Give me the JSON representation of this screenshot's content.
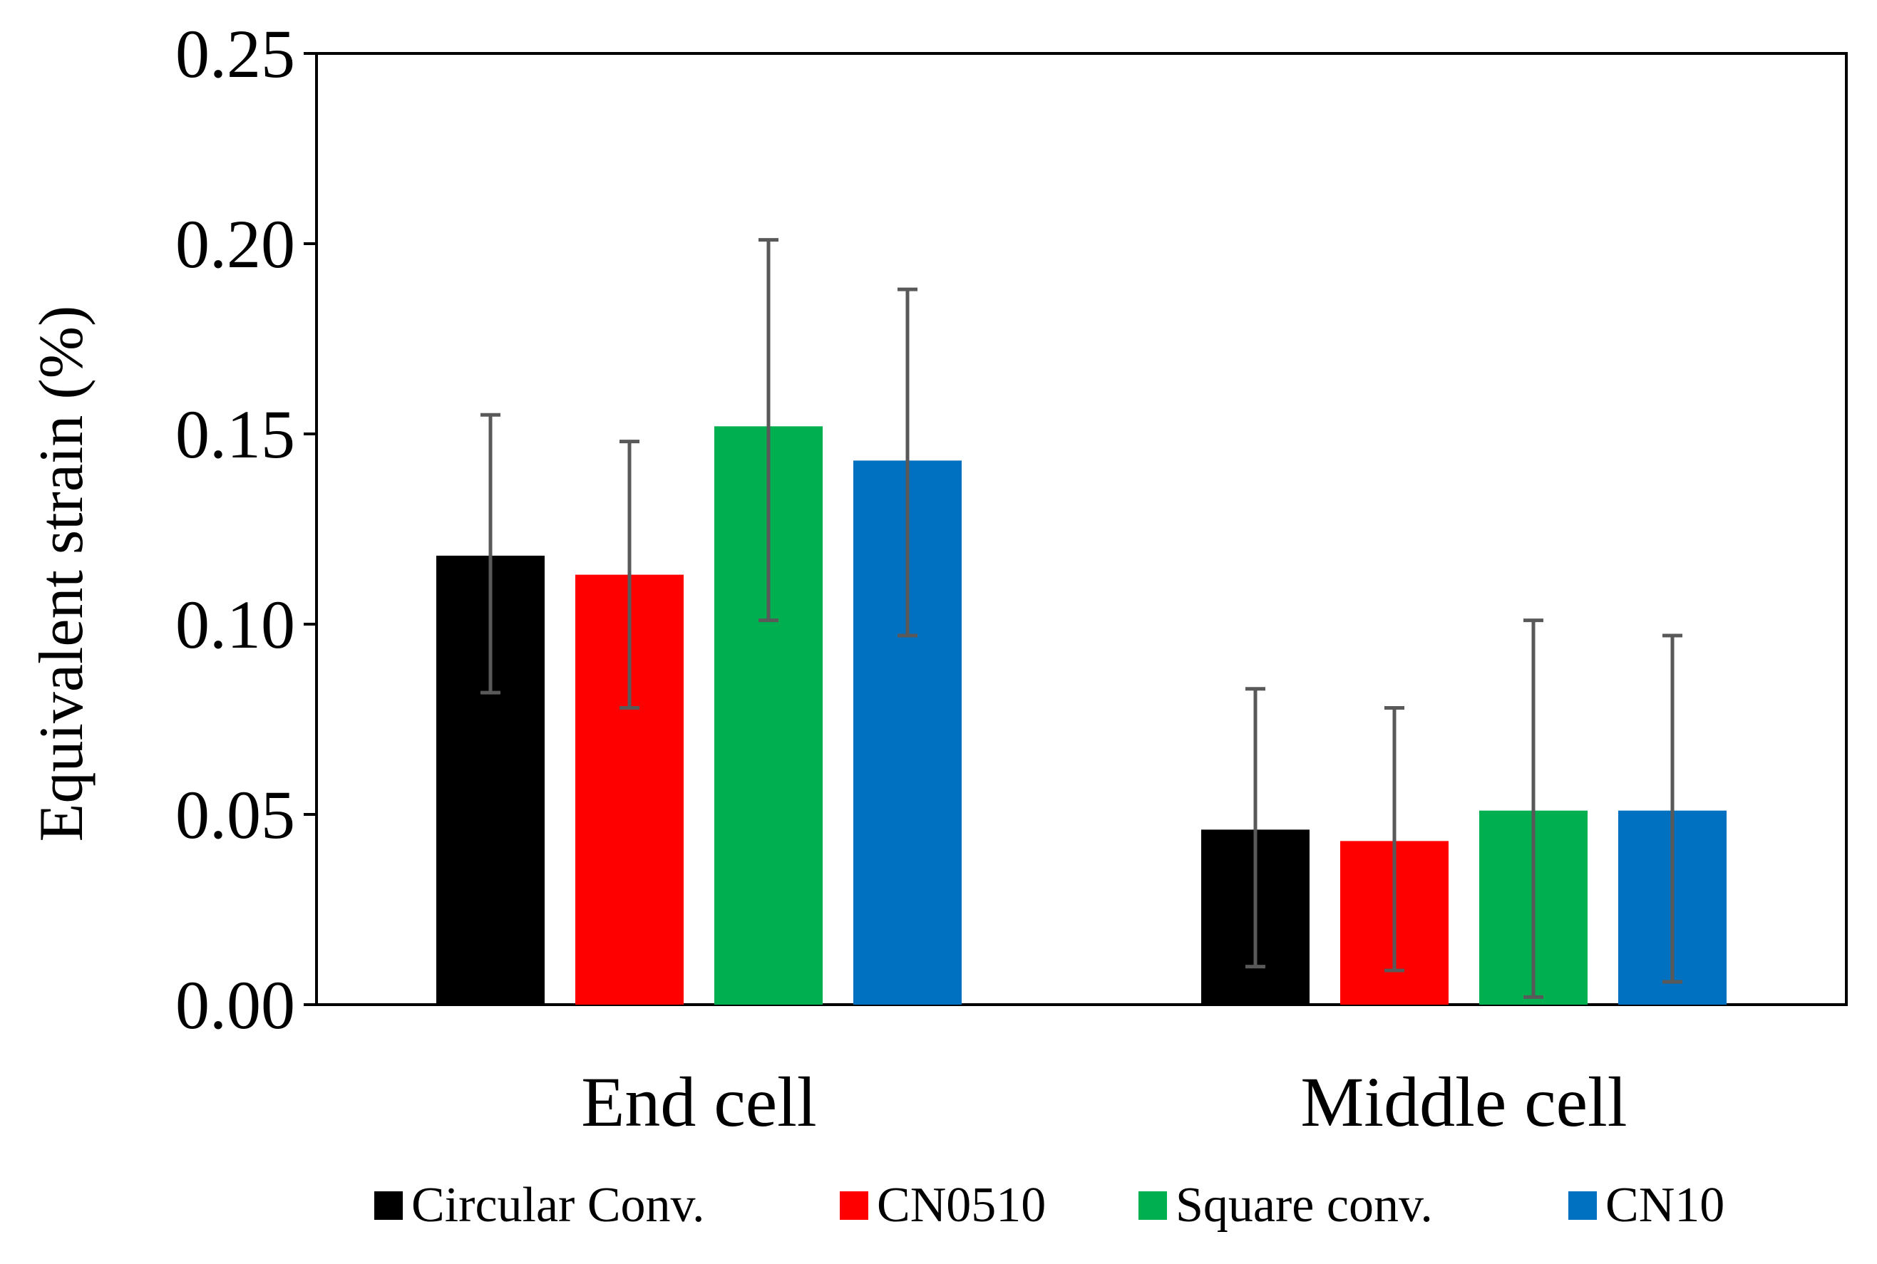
{
  "chart_data": {
    "type": "bar",
    "title": "",
    "xlabel": "",
    "ylabel": "Equivalent strain (%)",
    "ylim": [
      0,
      0.25
    ],
    "yticks": [
      "0.00",
      "0.05",
      "0.10",
      "0.15",
      "0.20",
      "0.25"
    ],
    "ytick_values": [
      0,
      0.05,
      0.1,
      0.15,
      0.2,
      0.25
    ],
    "grid": false,
    "legend_position": "bottom",
    "categories": [
      "End cell",
      "Middle cell"
    ],
    "series": [
      {
        "name": "Circular Conv.",
        "color": "#000000",
        "values": [
          0.118,
          0.046
        ],
        "error_low": [
          0.082,
          0.01
        ],
        "error_high": [
          0.155,
          0.083
        ]
      },
      {
        "name": "CN0510",
        "color": "#ff0000",
        "values": [
          0.113,
          0.043
        ],
        "error_low": [
          0.078,
          0.009
        ],
        "error_high": [
          0.148,
          0.078
        ]
      },
      {
        "name": "Square conv.",
        "color": "#00b050",
        "values": [
          0.152,
          0.051
        ],
        "error_low": [
          0.101,
          0.002
        ],
        "error_high": [
          0.201,
          0.101
        ]
      },
      {
        "name": "CN10",
        "color": "#0070c0",
        "values": [
          0.143,
          0.051
        ],
        "error_low": [
          0.097,
          0.006
        ],
        "error_high": [
          0.188,
          0.097
        ]
      }
    ],
    "error_bar_color": "#595959"
  }
}
